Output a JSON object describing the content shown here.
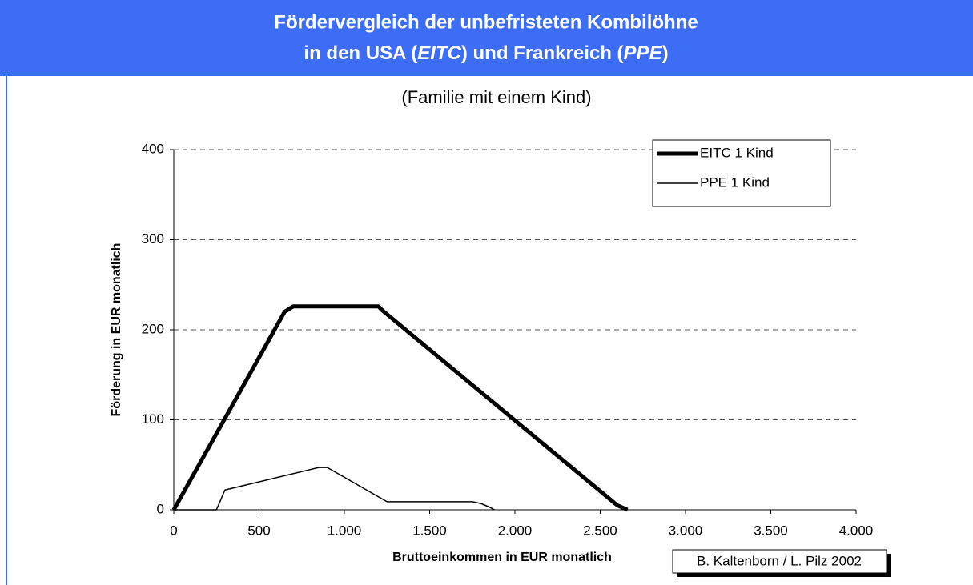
{
  "chart_data": {
    "type": "line",
    "title": [
      "Fördervergleich der unbefristeten Kombilöhne",
      [
        "in den USA (",
        "EITC",
        ") und Frankreich (",
        "PPE",
        ")"
      ]
    ],
    "subtitle": "(Familie mit einem Kind)",
    "x_label": "Bruttoeinkommen in EUR monatlich",
    "y_label": "Förderung in EUR monatlich",
    "credit": "B. Kaltenborn / L. Pilz 2002",
    "series": [
      {
        "name": "EITC 1 Kind",
        "color": "#000000",
        "width": "thick",
        "x": [
          0,
          650,
          700,
          1200,
          1220,
          2600,
          2660
        ],
        "values": [
          0,
          220,
          226,
          226,
          222,
          5,
          0
        ]
      },
      {
        "name": "PPE 1 Kind",
        "color": "#000000",
        "width": "thin",
        "x": [
          0,
          250,
          300,
          850,
          900,
          1250,
          1750,
          1800,
          1850,
          1880
        ],
        "values": [
          0,
          0,
          22,
          47,
          47,
          9,
          9,
          7,
          3,
          0
        ]
      }
    ],
    "xlim": [
      0,
      4000
    ],
    "xticks": [
      0,
      500,
      {
        "value": 1000,
        "label": "1.000"
      },
      {
        "value": 1500,
        "label": "1.500"
      },
      {
        "value": 2000,
        "label": "2.000"
      },
      {
        "value": 2500,
        "label": "2.500"
      },
      {
        "value": 3000,
        "label": "3.000"
      },
      {
        "value": 3500,
        "label": "3.500"
      },
      {
        "value": 4000,
        "label": "4.000"
      }
    ],
    "ylim": [
      0,
      400
    ],
    "yticks": [
      0,
      100,
      200,
      300,
      400
    ],
    "grid": true,
    "legend": "upper right"
  }
}
